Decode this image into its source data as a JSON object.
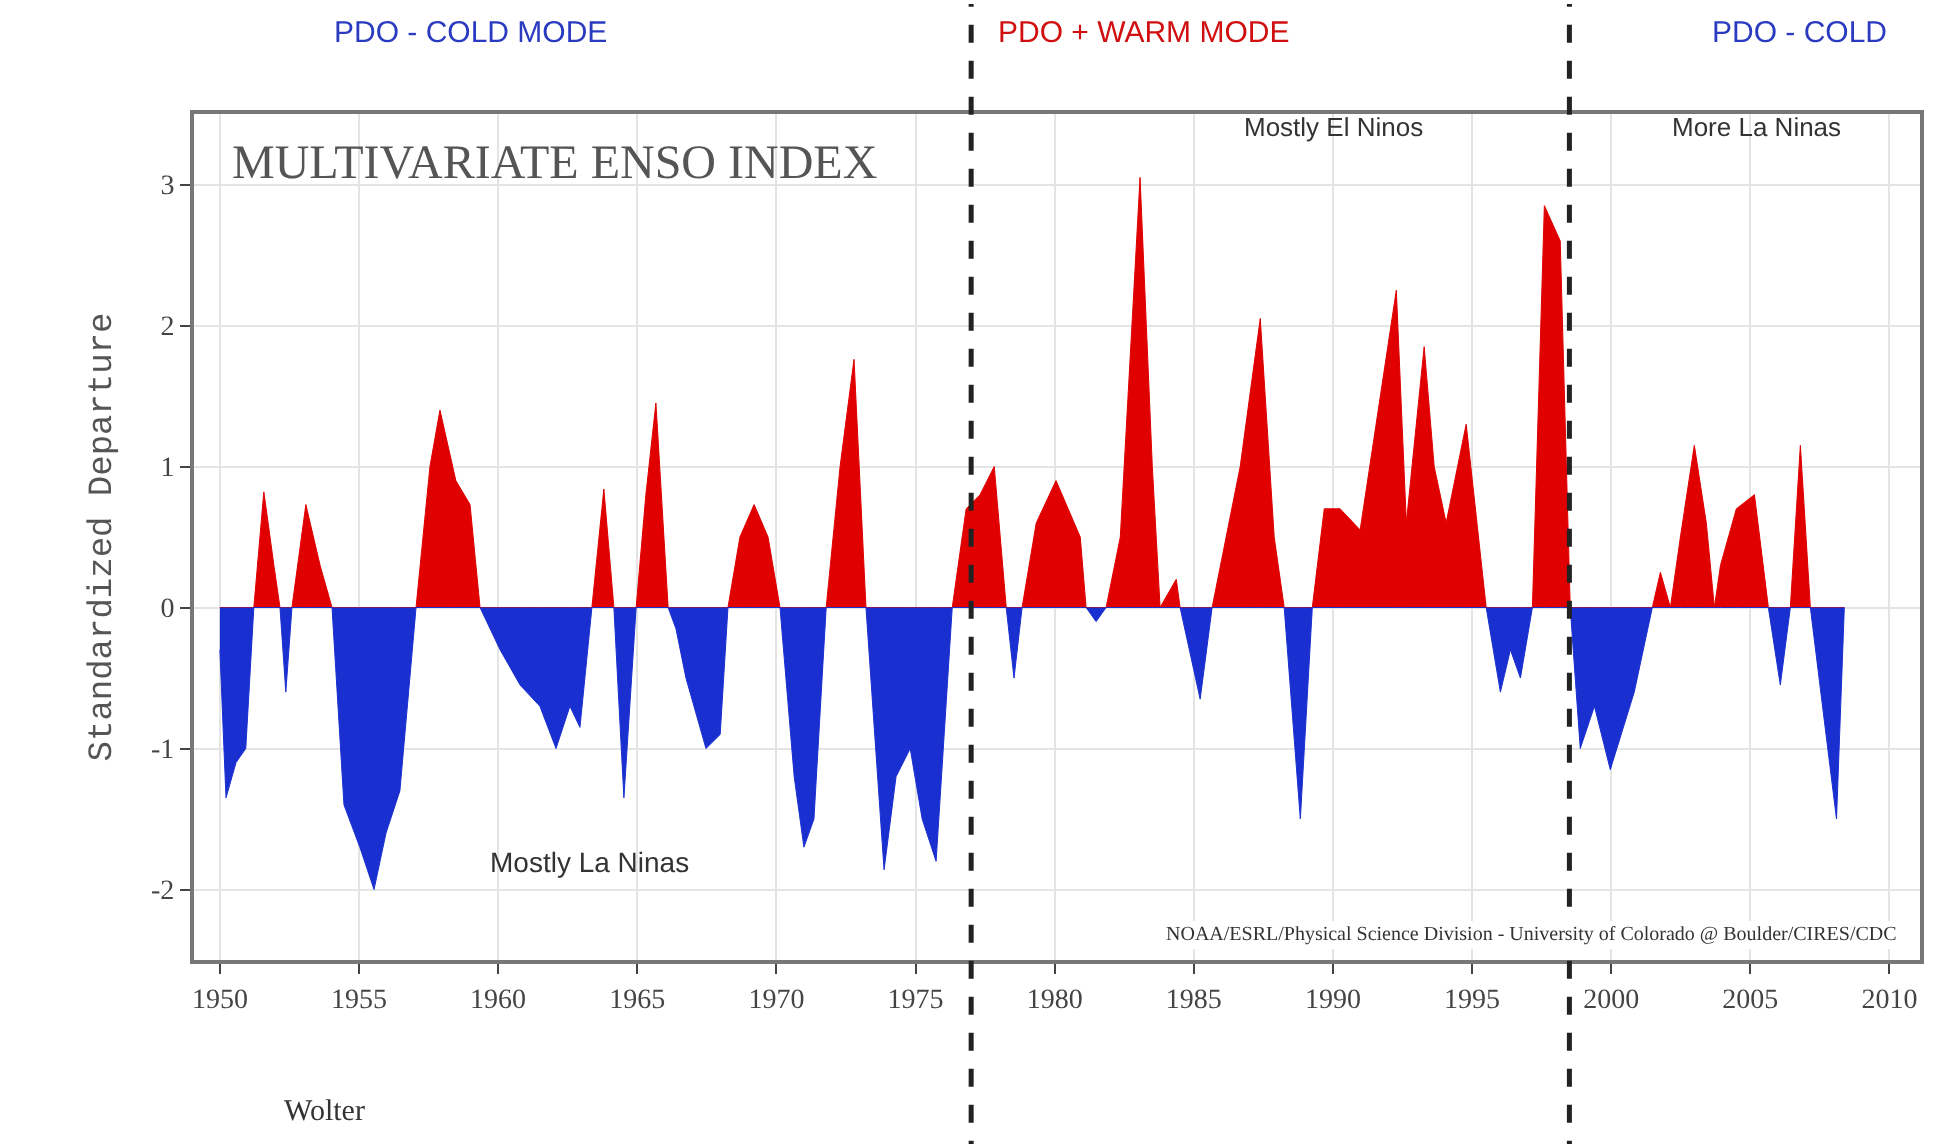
{
  "chart_data": {
    "type": "area",
    "ylabel": "Standardized Departure",
    "x": [
      1950.0,
      1950.22,
      1950.58,
      1950.93,
      1951.22,
      1951.58,
      1951.94,
      1952.16,
      1952.37,
      1952.59,
      1953.09,
      1953.6,
      1954.03,
      1954.46,
      1955.03,
      1955.54,
      1955.97,
      1956.47,
      1957.05,
      1957.55,
      1957.91,
      1958.48,
      1958.99,
      1959.35,
      1960.07,
      1960.79,
      1961.5,
      1962.08,
      1962.58,
      1962.94,
      1963.37,
      1963.8,
      1964.16,
      1964.52,
      1964.96,
      1965.31,
      1965.67,
      1966.11,
      1966.39,
      1966.75,
      1967.47,
      1967.98,
      1968.26,
      1968.69,
      1969.2,
      1969.7,
      1970.13,
      1970.64,
      1970.99,
      1971.35,
      1971.79,
      1972.29,
      1972.79,
      1973.22,
      1973.87,
      1974.3,
      1974.81,
      1975.24,
      1975.74,
      1976.32,
      1976.82,
      1977.32,
      1977.83,
      1978.26,
      1978.54,
      1978.83,
      1979.34,
      1980.05,
      1980.92,
      1981.13,
      1981.49,
      1981.85,
      1982.36,
      1983.07,
      1983.51,
      1983.79,
      1984.37,
      1984.51,
      1985.23,
      1985.66,
      1986.67,
      1987.39,
      1987.89,
      1988.25,
      1988.83,
      1989.26,
      1989.69,
      1990.26,
      1990.98,
      1992.28,
      1992.64,
      1993.28,
      1993.64,
      1994.07,
      1994.79,
      1995.51,
      1996.02,
      1996.38,
      1996.74,
      1997.17,
      1997.6,
      1998.17,
      1998.53,
      1998.89,
      1999.4,
      1999.97,
      2000.83,
      2001.48,
      2001.77,
      2002.13,
      2002.49,
      2002.99,
      2003.42,
      2003.71,
      2003.93,
      2004.5,
      2005.15,
      2005.65,
      2006.08,
      2006.44,
      2006.8,
      2007.16,
      2007.66,
      2008.1,
      2008.38
    ],
    "series": [
      {
        "color": "#e00000",
        "values": [
          0,
          0,
          0,
          0,
          0,
          0.82,
          0.3,
          0,
          0,
          0,
          0.73,
          0.3,
          0,
          0,
          0,
          0,
          0,
          0,
          0,
          1.0,
          1.4,
          0.9,
          0.73,
          0,
          0,
          0,
          0,
          0,
          0,
          0,
          0,
          0.84,
          0,
          0,
          0,
          0.8,
          1.45,
          0,
          0,
          0,
          0,
          0,
          0,
          0.5,
          0.73,
          0.5,
          0,
          0,
          0,
          0,
          0,
          1.0,
          1.76,
          0,
          0,
          0,
          0,
          0,
          0,
          0,
          0.7,
          0.8,
          1.0,
          0,
          0,
          0,
          0.6,
          0.9,
          0.5,
          0,
          0,
          0,
          0.5,
          3.05,
          1.0,
          0,
          0.2,
          0,
          0,
          0,
          1.0,
          2.05,
          0.5,
          0,
          0,
          0,
          0.7,
          0.7,
          0.55,
          2.25,
          0.6,
          1.85,
          1.0,
          0.6,
          1.3,
          0,
          0,
          0,
          0,
          0,
          2.85,
          2.6,
          0,
          0,
          0,
          0,
          0,
          0,
          0.25,
          0,
          0.5,
          1.15,
          0.6,
          0,
          0.3,
          0.7,
          0.8,
          0,
          0,
          0,
          1.15,
          0,
          0,
          0,
          0
        ]
      },
      {
        "color": "#1a2fd0",
        "values": [
          -0.3,
          -1.35,
          -1.1,
          -1.0,
          0,
          0,
          0,
          0,
          -0.6,
          0,
          0,
          0,
          0,
          -1.4,
          -1.7,
          -2.0,
          -1.6,
          -1.3,
          0,
          0,
          0,
          0,
          0,
          0,
          -0.3,
          -0.55,
          -0.7,
          -1.0,
          -0.7,
          -0.85,
          0,
          0,
          0,
          -1.35,
          0,
          0,
          0,
          0,
          -0.15,
          -0.5,
          -1.0,
          -0.9,
          0,
          0,
          0,
          0,
          0,
          -1.2,
          -1.7,
          -1.5,
          0,
          0,
          0,
          0,
          -1.86,
          -1.2,
          -1.0,
          -1.5,
          -1.8,
          0,
          0,
          0,
          0,
          0,
          -0.5,
          0,
          0,
          0,
          0,
          0,
          -0.1,
          0,
          0,
          0,
          0,
          0,
          0,
          0,
          -0.65,
          0,
          0,
          0,
          0,
          0,
          -1.5,
          0,
          0,
          0,
          0,
          0,
          0,
          0,
          0,
          0,
          0,
          0,
          -0.6,
          -0.3,
          -0.5,
          0,
          0,
          0,
          0,
          -1.0,
          -0.7,
          -1.15,
          -0.6,
          0,
          0,
          0,
          0,
          0,
          0,
          0,
          0,
          0,
          0,
          0,
          -0.55,
          0,
          0,
          0,
          -0.8,
          -1.5,
          0
        ]
      }
    ],
    "xlim": [
      1949.07,
      2011.1
    ],
    "xticks": [
      1950,
      1955,
      1960,
      1965,
      1970,
      1975,
      1980,
      1985,
      1990,
      1995,
      2000,
      2005,
      2010
    ],
    "ylim": [
      -2.5,
      3.5
    ],
    "yticks": [
      -2,
      -1,
      0,
      1,
      2,
      3
    ],
    "grid": true,
    "ref_lines": [
      {
        "axis": "x",
        "value": 1977,
        "label": null,
        "line_style": "dashed",
        "color": "#222222"
      },
      {
        "axis": "x",
        "value": 1998.5,
        "label": null,
        "line_style": "dashed",
        "color": "#222222"
      }
    ],
    "annotations": [
      "PDO - COLD MODE",
      "PDO + WARM MODE",
      "PDO - COLD",
      "MULTIVARIATE ENSO INDEX",
      "Mostly El Ninos",
      "More La Ninas",
      "Mostly La Ninas",
      "NOAA/ESRL/Physical Science Division - University of Colorado @ Boulder/CIRES/CDC",
      "Wolter"
    ]
  }
}
